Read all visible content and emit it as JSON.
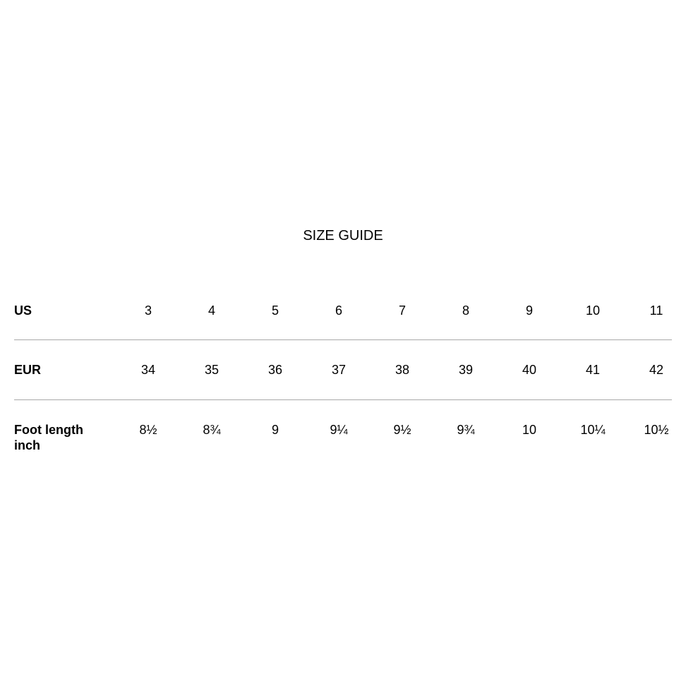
{
  "title": "SIZE GUIDE",
  "rows": [
    {
      "label": "US",
      "values": [
        "3",
        "4",
        "5",
        "6",
        "7",
        "8",
        "9",
        "10",
        "11"
      ]
    },
    {
      "label": "EUR",
      "values": [
        "34",
        "35",
        "36",
        "37",
        "38",
        "39",
        "40",
        "41",
        "42"
      ]
    },
    {
      "label": "Foot length",
      "label_line2": "inch",
      "values": [
        "8½",
        "8¾",
        "9",
        "9¼",
        "9½",
        "9¾",
        "10",
        "10¼",
        "10½"
      ]
    }
  ]
}
